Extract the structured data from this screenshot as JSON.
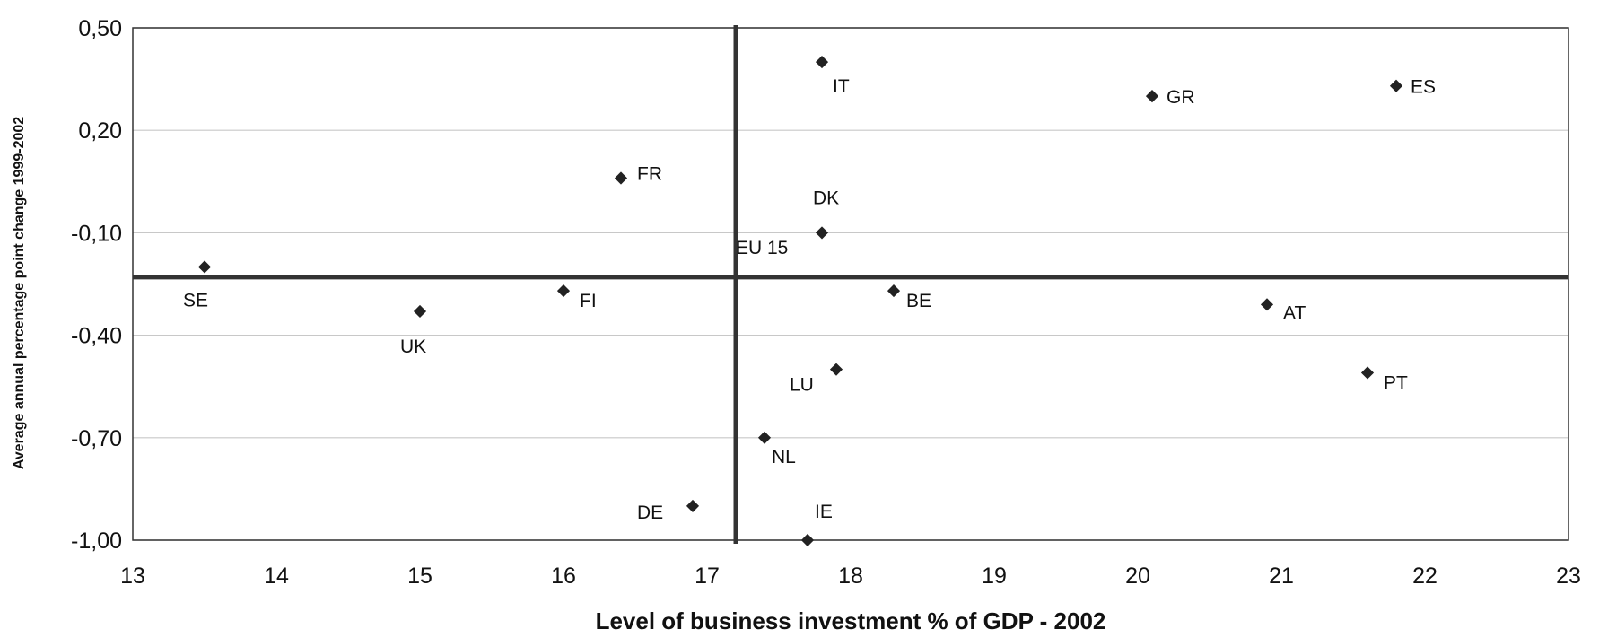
{
  "chart_data": {
    "type": "scatter",
    "title": "",
    "xlabel": "Level of business investment % of GDP - 2002",
    "ylabel": "Average annual percentage point change 1999-2002",
    "xlim": [
      13,
      23
    ],
    "ylim": [
      -1.0,
      0.5
    ],
    "x_ticks": [
      "13",
      "14",
      "15",
      "16",
      "17",
      "18",
      "19",
      "20",
      "21",
      "22",
      "23"
    ],
    "y_ticks": [
      "0,50",
      "0,20",
      "-0,10",
      "-0,40",
      "-0,70",
      "-1,00"
    ],
    "grid": "horizontal",
    "reference_lines": {
      "x": 17.2,
      "y": -0.23
    },
    "points": [
      {
        "label": "IT",
        "x": 17.8,
        "y": 0.4
      },
      {
        "label": "GR",
        "x": 20.1,
        "y": 0.3
      },
      {
        "label": "ES",
        "x": 21.8,
        "y": 0.33
      },
      {
        "label": "FR",
        "x": 16.4,
        "y": 0.06
      },
      {
        "label": "DK",
        "x": 17.8,
        "y": -0.1
      },
      {
        "label": "EU 15",
        "x": 17.2,
        "y": -0.23
      },
      {
        "label": "SE",
        "x": 13.5,
        "y": -0.2
      },
      {
        "label": "FI",
        "x": 16.0,
        "y": -0.27
      },
      {
        "label": "BE",
        "x": 18.3,
        "y": -0.27
      },
      {
        "label": "AT",
        "x": 20.9,
        "y": -0.31
      },
      {
        "label": "UK",
        "x": 15.0,
        "y": -0.33
      },
      {
        "label": "LU",
        "x": 17.9,
        "y": -0.5
      },
      {
        "label": "PT",
        "x": 21.6,
        "y": -0.51
      },
      {
        "label": "NL",
        "x": 17.4,
        "y": -0.7
      },
      {
        "label": "DE",
        "x": 16.9,
        "y": -0.9
      },
      {
        "label": "IE",
        "x": 17.7,
        "y": -1.0
      }
    ],
    "colors": {
      "marker": "#222222",
      "axis": "#333333",
      "grid": "#c8c8c8"
    }
  }
}
